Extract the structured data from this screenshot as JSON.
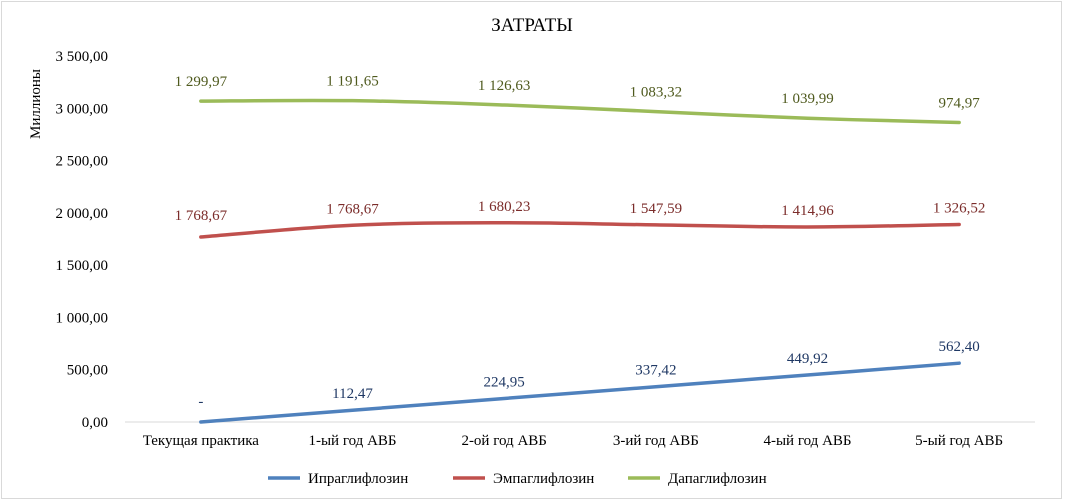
{
  "chart_data": {
    "type": "line",
    "title": "ЗАТРАТЫ",
    "ylabel": "Миллионы",
    "xlabel": "",
    "ylim": [
      0,
      3500
    ],
    "yticks": [
      "0,00",
      "500,00",
      "1 000,00",
      "1 500,00",
      "2 000,00",
      "2 500,00",
      "3 000,00",
      "3 500,00"
    ],
    "categories": [
      "Текущая практика",
      "1-ый год АВБ",
      "2-ой год АВБ",
      "3-ий год АВБ",
      "4-ый год АВБ",
      "5-ый год АВБ"
    ],
    "grid": false,
    "legend": "bottom",
    "series": [
      {
        "name": "Ипраглифлозин",
        "color": "#4f81bd",
        "values": [
          0,
          112.47,
          224.95,
          337.42,
          449.92,
          562.4
        ],
        "labels": [
          "-",
          "112,47",
          "224,95",
          "337,42",
          "449,92",
          "562,40"
        ],
        "label_color": "#1f3864"
      },
      {
        "name": "Эмпаглифлозин",
        "color": "#c0504d",
        "values": [
          1768.67,
          1881.14,
          1905.18,
          1884.99,
          1864.88,
          1888.92
        ],
        "labels": [
          "1 768,67",
          "1 768,67",
          "1 680,23",
          "1 547,59",
          "1 414,96",
          "1 326,52"
        ],
        "label_color": "#7b2c2a"
      },
      {
        "name": "Дапаглифлозин",
        "color": "#9bbb59",
        "values": [
          3068.64,
          3072.79,
          3031.81,
          2968.33,
          2904.87,
          2864.01
        ],
        "labels": [
          "1 299,97",
          "1 191,65",
          "1 126,63",
          "1 083,32",
          "1 039,99",
          "974,97"
        ],
        "label_color": "#4f5a1e"
      }
    ]
  }
}
